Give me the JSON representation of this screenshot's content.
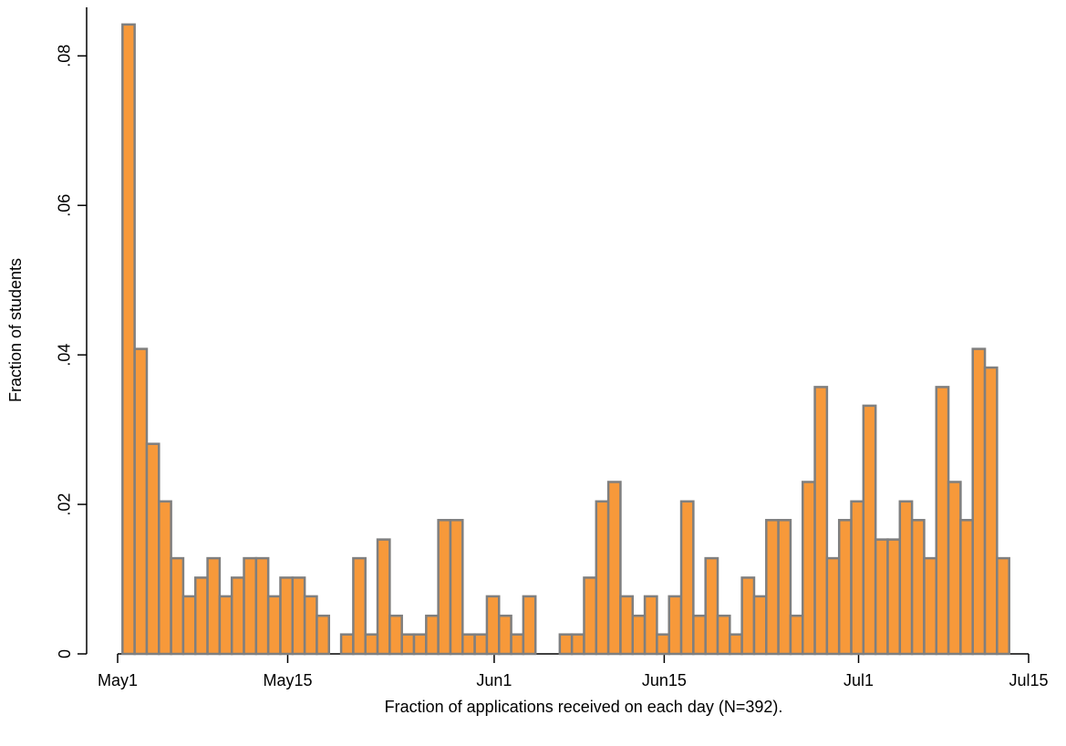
{
  "chart_data": {
    "type": "histogram",
    "x_label": "Fraction of applications received on each day (N=392).",
    "y_label": "Fraction of students",
    "bins": [
      0.4,
      1.4,
      2.4,
      3.4,
      4.4,
      5.4,
      6.4,
      7.4,
      8.4,
      9.4,
      10.4,
      11.4,
      12.4,
      13.4,
      14.4,
      15.4,
      16.4,
      17.4,
      18.4,
      19.4,
      20.4,
      21.4,
      22.4,
      23.4,
      24.4,
      25.4,
      26.4,
      27.4,
      28.4,
      29.4,
      30.4,
      31.4,
      32.4,
      33.4,
      34.4,
      35.4,
      36.4,
      37.4,
      38.4,
      39.4,
      40.4,
      41.4,
      42.4,
      43.4,
      44.4,
      45.4,
      46.4,
      47.4,
      48.4,
      49.4,
      50.4,
      51.4,
      52.4,
      53.4,
      54.4,
      55.4,
      56.4,
      57.4,
      58.4,
      59.4,
      60.4,
      61.4,
      62.4,
      63.4,
      64.4,
      65.4,
      66.4,
      67.4,
      68.4,
      69.4,
      70.4,
      71.4,
      72.4,
      73.4
    ],
    "values": [
      0.0842,
      0.0408,
      0.0281,
      0.0204,
      0.0128,
      0.0077,
      0.0102,
      0.0128,
      0.0077,
      0.0102,
      0.0128,
      0.0128,
      0.0077,
      0.0102,
      0.0102,
      0.0077,
      0.0051,
      0,
      0.0026,
      0.0128,
      0.0026,
      0.0153,
      0.0051,
      0.0026,
      0.0026,
      0.0051,
      0.0179,
      0.0179,
      0.0026,
      0.0026,
      0.0077,
      0.0051,
      0.0026,
      0.0077,
      0,
      0,
      0.0026,
      0.0026,
      0.0102,
      0.0204,
      0.023,
      0.0077,
      0.0051,
      0.0077,
      0.0026,
      0.0077,
      0.0204,
      0.0051,
      0.0128,
      0.0051,
      0.0026,
      0.0102,
      0.0077,
      0.0179,
      0.0179,
      0.0051,
      0.023,
      0.0357,
      0.0128,
      0.0179,
      0.0204,
      0.0332,
      0.0153,
      0.0153,
      0.0204,
      0.0179,
      0.0128,
      0.0357,
      0.023,
      0.0179,
      0.0408,
      0.0383,
      0.0128
    ],
    "color": "#f7993a",
    "edge_color": "#7f7f7f",
    "xlim": [
      0,
      75
    ],
    "xticks": [
      {
        "value": 0,
        "label": "May1"
      },
      {
        "value": 14,
        "label": "May15"
      },
      {
        "value": 31,
        "label": "Jun1"
      },
      {
        "value": 45,
        "label": "Jun15"
      },
      {
        "value": 61,
        "label": "Jul1"
      },
      {
        "value": 75,
        "label": "Jul15"
      }
    ],
    "ylim": [
      0,
      0.0865
    ],
    "yticks": [
      0,
      {
        "value": 0.02,
        "label": ".02"
      },
      {
        "value": 0.04,
        "label": ".04"
      },
      {
        "value": 0.06,
        "label": ".06"
      },
      {
        "value": 0.08,
        "label": ".08"
      }
    ]
  }
}
